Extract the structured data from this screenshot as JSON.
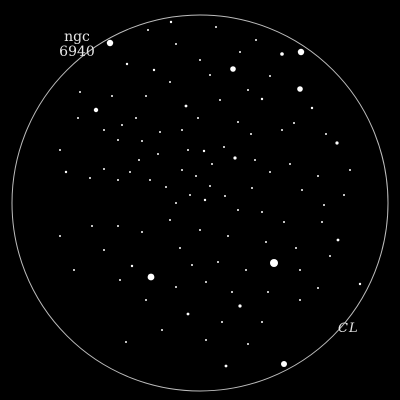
{
  "object_label": {
    "line1": "ngc",
    "line2": "6940"
  },
  "signature": "CL",
  "colors": {
    "background": "#000000",
    "field_circle": "#bdbdbd",
    "stars": "#ffffff",
    "text": "#e6e6e6"
  }
}
